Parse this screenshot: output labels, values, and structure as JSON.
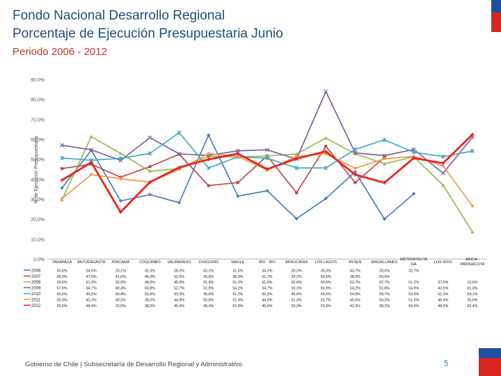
{
  "header": {
    "title_line1": "Fondo Nacional Desarrollo Regional",
    "title_line2": "Porcentaje de Ejecución Presupuestaria Junio",
    "subtitle": "Periodo 2006 - 2012"
  },
  "footer": {
    "text": "Gobierno de Chile | Subsecretaría de Desarrollo Regional y Administrativo",
    "page": "5"
  },
  "colors": {
    "title": "#1f4e79",
    "subtitle": "#c0392b",
    "flag_blue": "#1f4ea3",
    "flag_red": "#d7261e"
  },
  "chart_data": {
    "type": "line",
    "ylabel": "% de Ejecución Presupuestaria",
    "ylim": [
      0,
      90
    ],
    "yticks": [
      "0,0%",
      "10,0%",
      "20,0%",
      "30,0%",
      "40,0%",
      "50,0%",
      "60,0%",
      "70,0%",
      "80,0%",
      "90,0%"
    ],
    "grid": false,
    "categories": [
      "TARAPACA",
      "ANTOFAGASTA",
      "ATACAMA",
      "COQUIMBO",
      "VALPARAISO",
      "O'HIGGINS",
      "MAULE",
      "BIO - BIO",
      "ARAUCANIA",
      "LOS LAGOS",
      "AYSEN",
      "MAGALLANES",
      "METROPOLITANA",
      "LOS RIOS",
      "ARICA - PARINACOTA"
    ],
    "series": [
      {
        "name": "2006",
        "color": "#4a7ebb",
        "marker": "diamond",
        "table": [
          "35,6%",
          "54,5%",
          "29,1%",
          "32,3%",
          "28,2%",
          "62,1%",
          "31,5%",
          "34,2%",
          "20,2%",
          "30,3%",
          "43,7%",
          "20,0%",
          "32,7%",
          "",
          ""
        ],
        "values": [
          35.6,
          54.5,
          29.1,
          32.3,
          28.2,
          62.1,
          31.5,
          34.2,
          20.2,
          30.3,
          43.7,
          20.0,
          32.7,
          null,
          null
        ]
      },
      {
        "name": "2007",
        "color": "#be4b48",
        "marker": "square",
        "table": [
          "45,3%",
          "47,5%",
          "41,0%",
          "46,3%",
          "52,5%",
          "36,8%",
          "38,3%",
          "51,7%",
          "33,2%",
          "56,5%",
          "38,3%",
          "50,9%",
          "",
          "",
          ""
        ],
        "values": [
          45.3,
          47.5,
          41.0,
          46.3,
          52.5,
          36.8,
          38.3,
          51.7,
          33.2,
          56.5,
          38.3,
          50.9,
          null,
          null,
          null
        ]
      },
      {
        "name": "2008",
        "color": "#98b954",
        "marker": "triangle",
        "table": [
          "29,6%",
          "61,3%",
          "52,9%",
          "44,0%",
          "45,3%",
          "51,4%",
          "51,2%",
          "51,6%",
          "52,6%",
          "60,6%",
          "52,7%",
          "47,7%",
          "51,2%",
          "37,0%",
          "13,6%"
        ],
        "values": [
          29.6,
          61.3,
          52.9,
          44.0,
          45.3,
          51.4,
          51.2,
          51.6,
          52.6,
          60.6,
          52.7,
          47.7,
          51.2,
          37.0,
          13.6
        ]
      },
      {
        "name": "2009",
        "color": "#7d60a0",
        "marker": "x",
        "table": [
          "57,0%",
          "54,7%",
          "49,4%",
          "60,8%",
          "52,7%",
          "51,9%",
          "54,2%",
          "54,7%",
          "50,1%",
          "83,9%",
          "53,2%",
          "51,8%",
          "54,9%",
          "43,0%",
          "61,0%"
        ],
        "values": [
          57.0,
          54.7,
          49.4,
          60.8,
          52.7,
          51.9,
          54.2,
          54.7,
          50.1,
          83.9,
          53.2,
          51.8,
          54.9,
          43.0,
          61.0
        ]
      },
      {
        "name": "2010",
        "color": "#46aac4",
        "marker": "star",
        "table": [
          "50,6%",
          "49,5%",
          "50,4%",
          "52,9%",
          "63,3%",
          "45,6%",
          "51,2%",
          "50,5%",
          "45,6%",
          "45,6%",
          "54,9%",
          "59,7%",
          "53,5%",
          "51,3%",
          "54,1%"
        ],
        "values": [
          50.6,
          49.5,
          50.4,
          52.9,
          63.3,
          45.6,
          51.2,
          50.5,
          45.6,
          45.6,
          54.9,
          59.7,
          53.5,
          51.3,
          54.1
        ]
      },
      {
        "name": "2011",
        "color": "#f79646",
        "marker": "circle",
        "table": [
          "30,3%",
          "42,3%",
          "40,2%",
          "38,5%",
          "44,9%",
          "52,8%",
          "51,4%",
          "44,5%",
          "51,4%",
          "52,7%",
          "45,5%",
          "50,2%",
          "51,5%",
          "46,6%",
          "26,6%"
        ],
        "values": [
          30.3,
          42.3,
          40.2,
          38.5,
          44.9,
          52.8,
          51.4,
          44.5,
          51.4,
          52.7,
          45.5,
          50.2,
          51.5,
          46.6,
          26.6
        ]
      },
      {
        "name": "2012",
        "color": "#e8261e",
        "marker": "plus",
        "table": [
          "39,5%",
          "48,4%",
          "23,5%",
          "38,5%",
          "45,9%",
          "49,9%",
          "52,8%",
          "45,0%",
          "50,3%",
          "53,9%",
          "42,3%",
          "38,2%",
          "50,6%",
          "48,0%",
          "62,4%"
        ],
        "values": [
          39.5,
          48.4,
          23.5,
          38.5,
          45.9,
          49.9,
          52.8,
          45.0,
          50.3,
          53.9,
          42.3,
          38.2,
          50.6,
          48.0,
          62.4
        ]
      }
    ]
  }
}
